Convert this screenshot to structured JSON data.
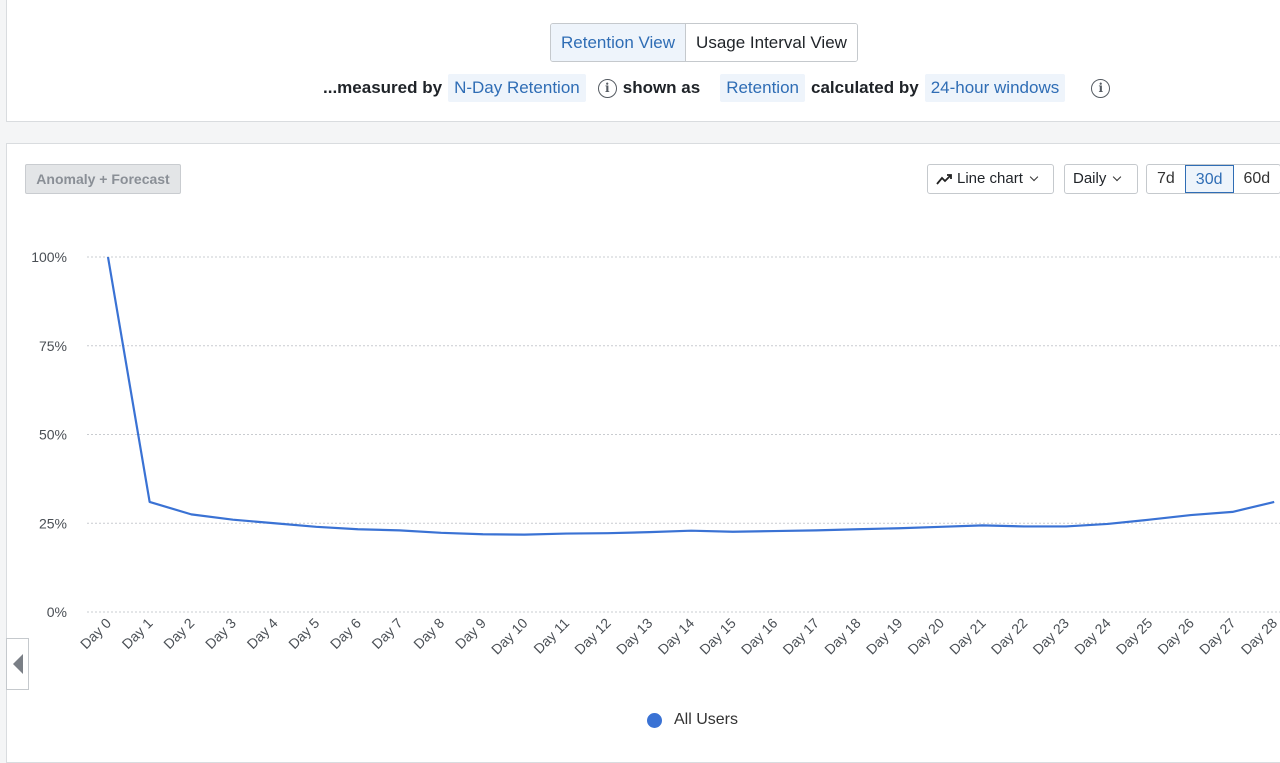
{
  "view_toggle": {
    "retention_view": "Retention View",
    "usage_interval_view": "Usage Interval View"
  },
  "measure": {
    "prefix": "...measured by",
    "metric": "N-Day Retention",
    "shown_as_label": "shown as",
    "shown_as": "Retention",
    "calculated_by_label": "calculated by",
    "calculated_by": "24-hour windows"
  },
  "controls": {
    "anomaly": "Anomaly + Forecast",
    "chart_type": "Line chart",
    "interval": "Daily",
    "ranges": [
      "7d",
      "30d",
      "60d"
    ],
    "active_range": "30d"
  },
  "icons": {
    "info": "info-icon",
    "chart_type": "line-chart-icon",
    "scroll": "chevron-left-icon"
  },
  "colors": {
    "series": "#3a72d4",
    "accent": "#2f6db5"
  },
  "chart_data": {
    "type": "line",
    "categories": [
      "Day 0",
      "Day 1",
      "Day 2",
      "Day 3",
      "Day 4",
      "Day 5",
      "Day 6",
      "Day 7",
      "Day 8",
      "Day 9",
      "Day 10",
      "Day 11",
      "Day 12",
      "Day 13",
      "Day 14",
      "Day 15",
      "Day 16",
      "Day 17",
      "Day 18",
      "Day 19",
      "Day 20",
      "Day 21",
      "Day 22",
      "Day 23",
      "Day 24",
      "Day 25",
      "Day 26",
      "Day 27",
      "Day 28"
    ],
    "series": [
      {
        "name": "All Users",
        "values": [
          100,
          31,
          27.5,
          26,
          25,
          24,
          23.3,
          23,
          22.3,
          21.9,
          21.8,
          22.1,
          22.2,
          22.5,
          22.9,
          22.6,
          22.8,
          23,
          23.3,
          23.6,
          24,
          24.4,
          24.1,
          24.1,
          24.8,
          26,
          27.3,
          28.2,
          31
        ]
      }
    ],
    "yticks": [
      "0%",
      "25%",
      "50%",
      "75%",
      "100%"
    ],
    "ylim": [
      0,
      100
    ],
    "grid": true,
    "legend": "bottom-center"
  }
}
